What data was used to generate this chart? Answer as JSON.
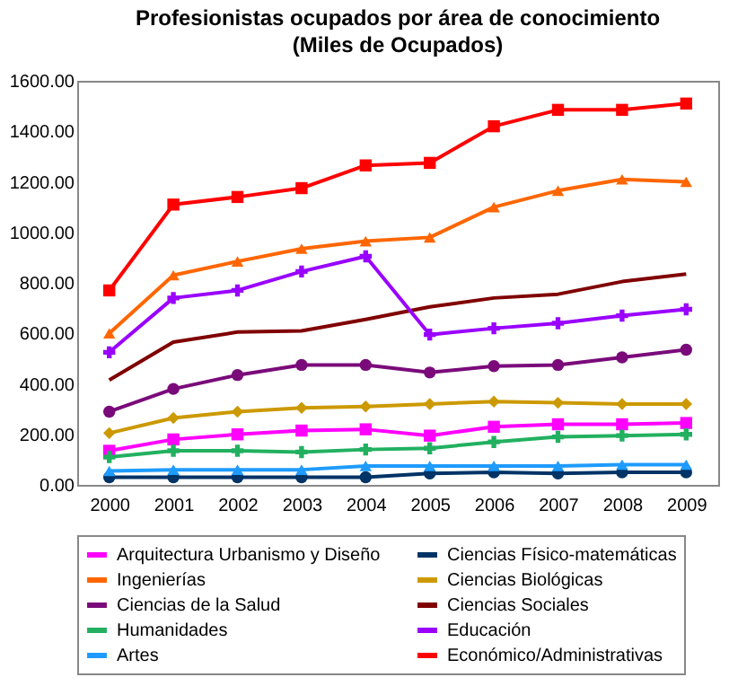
{
  "chart_data": {
    "type": "line",
    "title": "Profesionistas ocupados por área de conocimiento",
    "subtitle": "(Miles de Ocupados)",
    "categories": [
      "2000",
      "2001",
      "2002",
      "2003",
      "2004",
      "2005",
      "2006",
      "2007",
      "2008",
      "2009"
    ],
    "series": [
      {
        "name": "Arquitectura Urbanismo y Diseño",
        "color": "#ff00ff",
        "marker": "square",
        "values": [
          135,
          180,
          200,
          215,
          220,
          195,
          230,
          240,
          240,
          245
        ]
      },
      {
        "name": "Ciencias Físico-matemáticas",
        "color": "#003366",
        "marker": "circle",
        "values": [
          30,
          30,
          30,
          30,
          30,
          45,
          50,
          45,
          50,
          50
        ]
      },
      {
        "name": "Ingenierías",
        "color": "#ff6600",
        "marker": "triangle",
        "values": [
          600,
          830,
          885,
          935,
          965,
          980,
          1100,
          1165,
          1210,
          1200
        ]
      },
      {
        "name": "Ciencias Biológicas",
        "color": "#cc9900",
        "marker": "diamond",
        "values": [
          205,
          265,
          290,
          305,
          310,
          320,
          330,
          325,
          320,
          320
        ]
      },
      {
        "name": "Ciencias de la Salud",
        "color": "#7a0a7a",
        "marker": "circle",
        "values": [
          290,
          380,
          435,
          475,
          475,
          445,
          470,
          475,
          505,
          535
        ]
      },
      {
        "name": "Ciencias Sociales",
        "color": "#800000",
        "marker": "none",
        "values": [
          415,
          565,
          605,
          610,
          655,
          705,
          740,
          755,
          805,
          835
        ]
      },
      {
        "name": "Humanidades",
        "color": "#22b060",
        "marker": "cross",
        "values": [
          110,
          135,
          135,
          130,
          140,
          145,
          170,
          190,
          195,
          200
        ]
      },
      {
        "name": "Educación",
        "color": "#9900ff",
        "marker": "cross",
        "values": [
          525,
          740,
          770,
          845,
          905,
          595,
          620,
          640,
          670,
          695
        ]
      },
      {
        "name": "Artes",
        "color": "#1e9bff",
        "marker": "triangle",
        "values": [
          55,
          60,
          60,
          60,
          75,
          75,
          75,
          75,
          80,
          80
        ]
      },
      {
        "name": "Económico/Administrativas",
        "color": "#ff0000",
        "marker": "square",
        "values": [
          770,
          1110,
          1140,
          1175,
          1265,
          1275,
          1420,
          1485,
          1485,
          1510
        ]
      }
    ],
    "ylim": [
      0,
      1600
    ],
    "yticks": [
      {
        "value": 0,
        "label": "0.00"
      },
      {
        "value": 200,
        "label": "200.00"
      },
      {
        "value": 400,
        "label": "400.00"
      },
      {
        "value": 600,
        "label": "600.00"
      },
      {
        "value": 800,
        "label": "800.00"
      },
      {
        "value": 1000,
        "label": "1000.00"
      },
      {
        "value": 1200,
        "label": "1200.00"
      },
      {
        "value": 1400,
        "label": "1400.00"
      },
      {
        "value": 1600,
        "label": "1600.00"
      }
    ],
    "grid": false,
    "legend": "bottom",
    "line_style": "solid"
  }
}
